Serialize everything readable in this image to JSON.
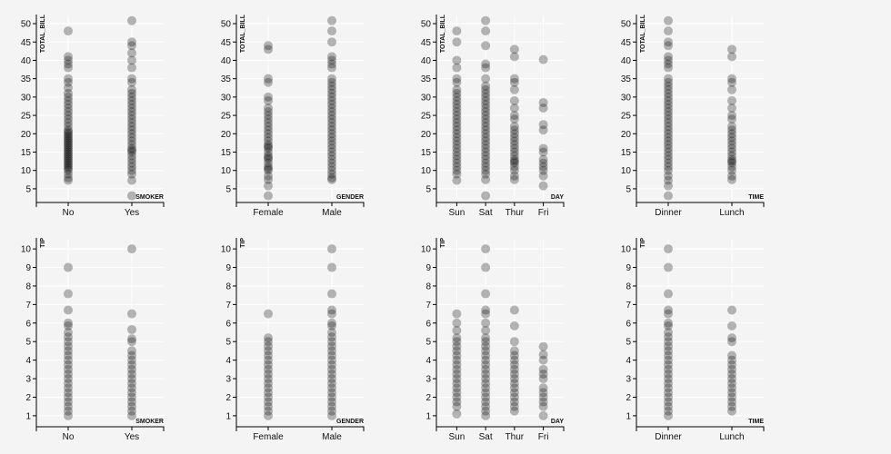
{
  "chart_data": [
    {
      "type": "scatter",
      "xlabel": "SMOKER",
      "ylabel": "TOTAL_BILL",
      "categories": [
        "No",
        "Yes"
      ],
      "ylim": [
        3,
        51
      ],
      "yticks": [
        5,
        10,
        15,
        20,
        25,
        30,
        35,
        40,
        45,
        50
      ],
      "series": [
        {
          "category": "No",
          "values": [
            7.3,
            8,
            9,
            10,
            10.5,
            11,
            11.5,
            12,
            12.5,
            13,
            13.5,
            14,
            14.5,
            15,
            15.5,
            16,
            16.5,
            17,
            17.5,
            18,
            18.5,
            19,
            19.5,
            20,
            20.5,
            21,
            22,
            23,
            24,
            25,
            26,
            27,
            28,
            29,
            30,
            31,
            32.5,
            34,
            35,
            38,
            39,
            40,
            41,
            48
          ]
        },
        {
          "category": "Yes",
          "values": [
            3.1,
            7.3,
            9,
            10,
            11,
            12,
            13,
            14,
            15,
            15.5,
            16,
            17,
            18,
            19,
            20,
            21,
            22,
            23,
            24,
            25,
            26,
            27,
            28,
            29,
            30,
            31,
            32,
            34,
            35,
            38,
            40,
            42,
            44,
            45,
            50.8
          ]
        }
      ]
    },
    {
      "type": "scatter",
      "xlabel": "GENDER",
      "ylabel": "TOTAL_BILL",
      "categories": [
        "Female",
        "Male"
      ],
      "ylim": [
        3,
        51
      ],
      "yticks": [
        5,
        10,
        15,
        20,
        25,
        30,
        35,
        40,
        45,
        50
      ],
      "series": [
        {
          "category": "Female",
          "values": [
            3.1,
            5.8,
            7.5,
            8.5,
            10,
            10.5,
            11,
            12,
            13,
            13.5,
            14,
            15,
            16,
            16.5,
            17,
            18,
            19,
            20,
            21,
            22,
            23,
            24,
            25,
            26,
            27,
            29,
            30,
            34,
            35,
            43,
            44
          ]
        },
        {
          "category": "Male",
          "values": [
            7.5,
            8,
            9,
            10,
            11,
            12,
            13,
            14,
            15,
            16,
            17,
            18,
            19,
            20,
            21,
            22,
            23,
            24,
            25,
            26,
            27,
            28,
            29,
            30,
            31,
            32,
            33,
            34,
            35,
            38,
            39,
            40,
            41,
            45,
            48,
            50.8
          ]
        }
      ]
    },
    {
      "type": "scatter",
      "xlabel": "DAY",
      "ylabel": "TOTAL_BILL",
      "categories": [
        "Sun",
        "Sat",
        "Thur",
        "Fri"
      ],
      "ylim": [
        3,
        51
      ],
      "yticks": [
        5,
        10,
        15,
        20,
        25,
        30,
        35,
        40,
        45,
        50
      ],
      "series": [
        {
          "category": "Sun",
          "values": [
            7.3,
            9,
            10,
            11,
            12,
            13,
            14,
            15,
            16,
            17,
            18,
            19,
            20,
            21,
            22,
            23,
            24,
            25,
            26,
            27,
            28,
            29,
            30,
            31,
            32,
            34,
            35,
            38,
            40,
            45,
            48
          ]
        },
        {
          "category": "Sat",
          "values": [
            3.1,
            7.5,
            9,
            10,
            11,
            12,
            13,
            14,
            15,
            16,
            17,
            18,
            19,
            20,
            21,
            22,
            23,
            24,
            25,
            26,
            27,
            28,
            29,
            30,
            31,
            32,
            33,
            35,
            38,
            39,
            44,
            48,
            50.8
          ]
        },
        {
          "category": "Thur",
          "values": [
            7.5,
            8.5,
            10,
            11,
            12,
            12.5,
            13,
            14,
            15,
            16,
            17,
            18,
            19,
            20,
            21,
            22,
            24,
            25,
            27,
            29,
            32,
            34,
            35,
            41,
            43
          ]
        },
        {
          "category": "Fri",
          "values": [
            5.8,
            8.5,
            10,
            11,
            12,
            13,
            15,
            16,
            21,
            22.5,
            27,
            28.5,
            40.2
          ]
        }
      ]
    },
    {
      "type": "scatter",
      "xlabel": "TIME",
      "ylabel": "TOTAL_BILL",
      "categories": [
        "Dinner",
        "Lunch"
      ],
      "ylim": [
        3,
        51
      ],
      "yticks": [
        5,
        10,
        15,
        20,
        25,
        30,
        35,
        40,
        45,
        50
      ],
      "series": [
        {
          "category": "Dinner",
          "values": [
            3.1,
            5.8,
            7.3,
            8.5,
            10,
            11,
            12,
            13,
            14,
            15,
            16,
            17,
            18,
            19,
            20,
            21,
            22,
            23,
            24,
            25,
            26,
            27,
            28,
            29,
            30,
            31,
            32,
            33,
            34,
            35,
            38,
            39,
            40,
            41,
            44,
            45,
            48,
            50.8
          ]
        },
        {
          "category": "Lunch",
          "values": [
            7.5,
            8.5,
            10,
            11,
            12,
            12.5,
            13,
            14,
            15,
            16,
            17,
            18,
            19,
            20,
            21,
            22,
            24,
            25,
            27,
            29,
            32,
            34,
            35,
            41,
            43
          ]
        }
      ]
    },
    {
      "type": "scatter",
      "xlabel": "SMOKER",
      "ylabel": "TIP",
      "categories": [
        "No",
        "Yes"
      ],
      "ylim": [
        0.7,
        10.3
      ],
      "yticks": [
        1,
        2,
        3,
        4,
        5,
        6,
        7,
        8,
        9,
        10
      ],
      "series": [
        {
          "category": "No",
          "values": [
            1,
            1.25,
            1.5,
            1.75,
            2,
            2.25,
            2.5,
            2.75,
            3,
            3.25,
            3.5,
            3.75,
            4,
            4.25,
            4.5,
            4.75,
            5,
            5.25,
            5.5,
            5.85,
            6,
            6.7,
            7.58,
            9
          ]
        },
        {
          "category": "Yes",
          "values": [
            1,
            1.25,
            1.5,
            1.75,
            2,
            2.25,
            2.5,
            2.75,
            3,
            3.25,
            3.5,
            3.75,
            4,
            4.25,
            4.5,
            5,
            5.15,
            5.65,
            6.5,
            10
          ]
        }
      ]
    },
    {
      "type": "scatter",
      "xlabel": "GENDER",
      "ylabel": "TIP",
      "categories": [
        "Female",
        "Male"
      ],
      "ylim": [
        0.7,
        10.3
      ],
      "yticks": [
        1,
        2,
        3,
        4,
        5,
        6,
        7,
        8,
        9,
        10
      ],
      "series": [
        {
          "category": "Female",
          "values": [
            1,
            1.25,
            1.5,
            1.75,
            2,
            2.25,
            2.5,
            2.75,
            3,
            3.25,
            3.5,
            3.75,
            4,
            4.25,
            4.5,
            4.75,
            5,
            5.2,
            6.5
          ]
        },
        {
          "category": "Male",
          "values": [
            1,
            1.25,
            1.5,
            1.75,
            2,
            2.25,
            2.5,
            2.75,
            3,
            3.25,
            3.5,
            3.75,
            4,
            4.25,
            4.5,
            4.75,
            5,
            5.25,
            5.5,
            5.85,
            6,
            6.5,
            6.7,
            7.58,
            9,
            10
          ]
        }
      ]
    },
    {
      "type": "scatter",
      "xlabel": "DAY",
      "ylabel": "TIP",
      "categories": [
        "Sun",
        "Sat",
        "Thur",
        "Fri"
      ],
      "ylim": [
        0.7,
        10.3
      ],
      "yticks": [
        1,
        2,
        3,
        4,
        5,
        6,
        7,
        8,
        9,
        10
      ],
      "series": [
        {
          "category": "Sun",
          "values": [
            1.1,
            1.5,
            1.75,
            2,
            2.25,
            2.5,
            2.75,
            3,
            3.25,
            3.5,
            3.75,
            4,
            4.25,
            4.5,
            4.75,
            5,
            5.2,
            5.6,
            6,
            6.5
          ]
        },
        {
          "category": "Sat",
          "values": [
            1,
            1.25,
            1.5,
            1.75,
            2,
            2.25,
            2.5,
            2.75,
            3,
            3.25,
            3.5,
            3.75,
            4,
            4.25,
            4.5,
            4.75,
            5,
            5.2,
            5.6,
            6,
            6.5,
            6.7,
            7.58,
            9,
            10
          ]
        },
        {
          "category": "Thur",
          "values": [
            1.25,
            1.5,
            1.75,
            2,
            2.25,
            2.5,
            2.75,
            3,
            3.25,
            3.5,
            3.75,
            4,
            4.25,
            4.5,
            5,
            5.85,
            6.7
          ]
        },
        {
          "category": "Fri",
          "values": [
            1,
            1.5,
            1.75,
            2,
            2.25,
            2.5,
            3,
            3.25,
            3.5,
            4,
            4.3,
            4.73
          ]
        }
      ]
    },
    {
      "type": "scatter",
      "xlabel": "TIME",
      "ylabel": "TIP",
      "categories": [
        "Dinner",
        "Lunch"
      ],
      "ylim": [
        0.7,
        10.3
      ],
      "yticks": [
        1,
        2,
        3,
        4,
        5,
        6,
        7,
        8,
        9,
        10
      ],
      "series": [
        {
          "category": "Dinner",
          "values": [
            1,
            1.25,
            1.5,
            1.75,
            2,
            2.25,
            2.5,
            2.75,
            3,
            3.25,
            3.5,
            3.75,
            4,
            4.25,
            4.5,
            4.75,
            5,
            5.25,
            5.5,
            5.85,
            6,
            6.5,
            6.7,
            7.58,
            9,
            10
          ]
        },
        {
          "category": "Lunch",
          "values": [
            1.25,
            1.5,
            1.75,
            2,
            2.25,
            2.5,
            2.75,
            3,
            3.25,
            3.5,
            3.75,
            4,
            4.25,
            5,
            5.2,
            5.85,
            6.7
          ]
        }
      ]
    }
  ]
}
